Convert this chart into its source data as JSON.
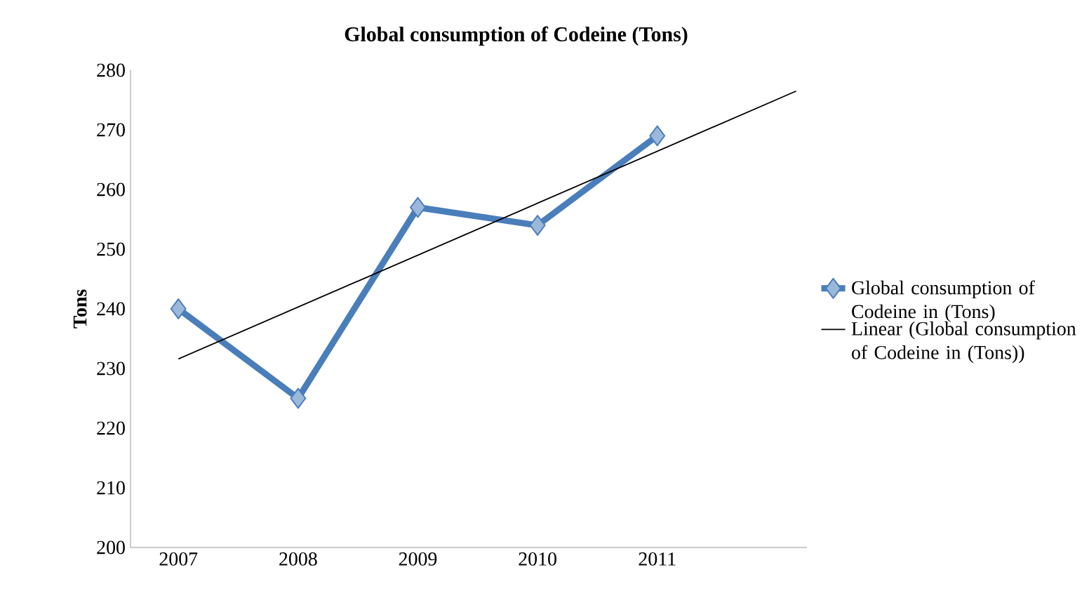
{
  "chart_data": {
    "type": "line",
    "title": "Global consumption of Codeine (Tons)",
    "ylabel": "Tons",
    "x": [
      2007,
      2008,
      2009,
      2010,
      2011
    ],
    "xlim": [
      2006.6,
      2012.25
    ],
    "xticks": [
      2007,
      2008,
      2009,
      2010,
      2011
    ],
    "ylim": [
      200,
      280
    ],
    "yticks": [
      200,
      210,
      220,
      230,
      240,
      250,
      260,
      270,
      280
    ],
    "series": [
      {
        "name": "Global consumption of Codeine in (Tons)",
        "color": "#4a7ebb",
        "marker": "diamond",
        "values": [
          240,
          225,
          257,
          254,
          269
        ]
      },
      {
        "name": "Linear (Global consumption of Codeine in (Tons))",
        "type": "line",
        "color": "#000000",
        "marker": "none",
        "x": [
          2007,
          2012.16
        ],
        "values": [
          231.6,
          276.5
        ]
      }
    ],
    "grid": false,
    "legend": "right"
  }
}
